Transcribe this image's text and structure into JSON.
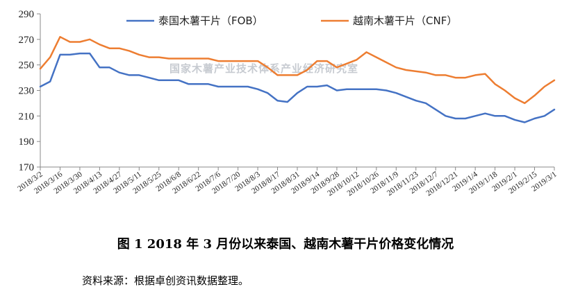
{
  "chart_data": {
    "type": "line",
    "title": "",
    "xlabel": "",
    "ylabel": "",
    "ylim": [
      170,
      290
    ],
    "yticks": [
      170,
      190,
      210,
      230,
      250,
      270,
      290
    ],
    "grid": false,
    "legend_position": "top",
    "x_start": "2018/3/2",
    "x_end": "2019/3/1",
    "x_tick_labels": [
      "2018/3/2",
      "2018/3/16",
      "2018/3/30",
      "2018/4/13",
      "2018/4/27",
      "2018/5/11",
      "2018/5/25",
      "2018/6/8",
      "2018/6/22",
      "2018/7/6",
      "2018/7/20",
      "2018/8/3",
      "2018/8/17",
      "2018/8/31",
      "2018/9/14",
      "2018/9/28",
      "2018/10/12",
      "2018/10/26",
      "2018/11/9",
      "2018/11/23",
      "2018/12/7",
      "2018/12/21",
      "2019/1/4",
      "2019/1/18",
      "2019/2/1",
      "2019/2/15",
      "2019/3/1"
    ],
    "series": [
      {
        "name": "泰国木薯干片（FOB）",
        "color": "#4472c4",
        "points": [
          [
            "2018/3/2",
            233
          ],
          [
            "2018/3/9",
            237
          ],
          [
            "2018/3/16",
            258
          ],
          [
            "2018/3/23",
            258
          ],
          [
            "2018/3/30",
            259
          ],
          [
            "2018/4/6",
            259
          ],
          [
            "2018/4/13",
            248
          ],
          [
            "2018/4/20",
            248
          ],
          [
            "2018/4/27",
            244
          ],
          [
            "2018/5/4",
            242
          ],
          [
            "2018/5/11",
            242
          ],
          [
            "2018/5/18",
            240
          ],
          [
            "2018/5/25",
            238
          ],
          [
            "2018/6/1",
            238
          ],
          [
            "2018/6/8",
            238
          ],
          [
            "2018/6/15",
            235
          ],
          [
            "2018/6/22",
            235
          ],
          [
            "2018/6/29",
            235
          ],
          [
            "2018/7/6",
            233
          ],
          [
            "2018/7/13",
            233
          ],
          [
            "2018/7/20",
            233
          ],
          [
            "2018/7/27",
            233
          ],
          [
            "2018/8/3",
            231
          ],
          [
            "2018/8/10",
            228
          ],
          [
            "2018/8/17",
            222
          ],
          [
            "2018/8/24",
            221
          ],
          [
            "2018/8/31",
            228
          ],
          [
            "2018/9/7",
            233
          ],
          [
            "2018/9/14",
            233
          ],
          [
            "2018/9/21",
            234
          ],
          [
            "2018/9/28",
            230
          ],
          [
            "2018/10/5",
            231
          ],
          [
            "2018/10/12",
            231
          ],
          [
            "2018/10/19",
            231
          ],
          [
            "2018/10/26",
            231
          ],
          [
            "2018/11/2",
            230
          ],
          [
            "2018/11/9",
            228
          ],
          [
            "2018/11/16",
            225
          ],
          [
            "2018/11/23",
            222
          ],
          [
            "2018/11/30",
            220
          ],
          [
            "2018/12/7",
            215
          ],
          [
            "2018/12/14",
            210
          ],
          [
            "2018/12/21",
            208
          ],
          [
            "2018/12/28",
            208
          ],
          [
            "2019/1/4",
            210
          ],
          [
            "2019/1/11",
            212
          ],
          [
            "2019/1/18",
            210
          ],
          [
            "2019/1/25",
            210
          ],
          [
            "2019/2/1",
            207
          ],
          [
            "2019/2/8",
            205
          ],
          [
            "2019/2/15",
            208
          ],
          [
            "2019/2/22",
            210
          ],
          [
            "2019/3/1",
            215
          ]
        ]
      },
      {
        "name": "越南木薯干片（CNF）",
        "color": "#ed7d31",
        "points": [
          [
            "2018/3/2",
            247
          ],
          [
            "2018/3/9",
            256
          ],
          [
            "2018/3/16",
            272
          ],
          [
            "2018/3/23",
            268
          ],
          [
            "2018/3/30",
            268
          ],
          [
            "2018/4/6",
            270
          ],
          [
            "2018/4/13",
            266
          ],
          [
            "2018/4/20",
            263
          ],
          [
            "2018/4/27",
            263
          ],
          [
            "2018/5/4",
            261
          ],
          [
            "2018/5/11",
            258
          ],
          [
            "2018/5/18",
            256
          ],
          [
            "2018/5/25",
            256
          ],
          [
            "2018/6/1",
            255
          ],
          [
            "2018/6/8",
            255
          ],
          [
            "2018/6/15",
            255
          ],
          [
            "2018/6/22",
            255
          ],
          [
            "2018/6/29",
            255
          ],
          [
            "2018/7/6",
            253
          ],
          [
            "2018/7/13",
            253
          ],
          [
            "2018/7/20",
            253
          ],
          [
            "2018/7/27",
            253
          ],
          [
            "2018/8/3",
            253
          ],
          [
            "2018/8/10",
            248
          ],
          [
            "2018/8/17",
            242
          ],
          [
            "2018/8/24",
            242
          ],
          [
            "2018/8/31",
            242
          ],
          [
            "2018/9/7",
            246
          ],
          [
            "2018/9/14",
            253
          ],
          [
            "2018/9/21",
            253
          ],
          [
            "2018/9/28",
            248
          ],
          [
            "2018/10/5",
            251
          ],
          [
            "2018/10/12",
            254
          ],
          [
            "2018/10/19",
            260
          ],
          [
            "2018/10/26",
            256
          ],
          [
            "2018/11/2",
            252
          ],
          [
            "2018/11/9",
            248
          ],
          [
            "2018/11/16",
            246
          ],
          [
            "2018/11/23",
            245
          ],
          [
            "2018/11/30",
            244
          ],
          [
            "2018/12/7",
            242
          ],
          [
            "2018/12/14",
            242
          ],
          [
            "2018/12/21",
            240
          ],
          [
            "2018/12/28",
            240
          ],
          [
            "2019/1/4",
            242
          ],
          [
            "2019/1/11",
            243
          ],
          [
            "2019/1/18",
            235
          ],
          [
            "2019/1/25",
            230
          ],
          [
            "2019/2/1",
            224
          ],
          [
            "2019/2/8",
            220
          ],
          [
            "2019/2/15",
            226
          ],
          [
            "2019/2/22",
            233
          ],
          [
            "2019/3/1",
            238
          ]
        ]
      }
    ],
    "watermark": "国家木薯产业技术体系产业经济研究室"
  },
  "caption": "图 1    2018 年 3 月份以来泰国、越南木薯干片价格变化情况",
  "source": "资料来源：根据卓创资讯数据整理。"
}
